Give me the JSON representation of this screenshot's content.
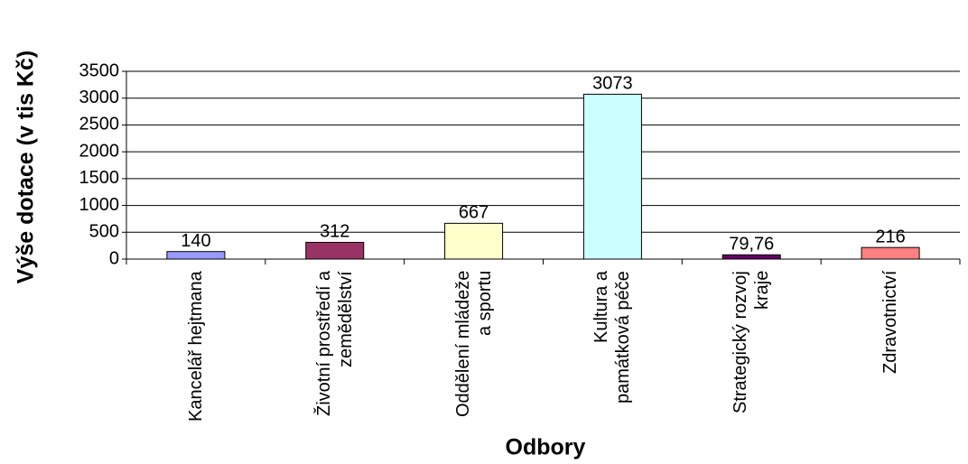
{
  "chart_data": {
    "type": "bar",
    "ylabel": "Výše dotace (v tis Kč)",
    "xlabel": "Odbory",
    "categories": [
      "Kancelář hejtmana",
      "Životní prostředí a zemědělství",
      "Oddělení mládeže a sportu",
      "Kultura a památková péče",
      "Strategický rozvoj kraje",
      "Zdravotnictví"
    ],
    "values": [
      140,
      312,
      667,
      3073,
      79.76,
      216
    ],
    "value_labels": [
      "140",
      "312",
      "667",
      "3073",
      "79,76",
      "216"
    ],
    "colors": [
      "#9999ff",
      "#993366",
      "#ffffcc",
      "#ccffff",
      "#660066",
      "#ff8080"
    ],
    "ylim": [
      0,
      3500
    ],
    "yticks": [
      0,
      500,
      1000,
      1500,
      2000,
      2500,
      3000,
      3500
    ],
    "grid": true
  }
}
